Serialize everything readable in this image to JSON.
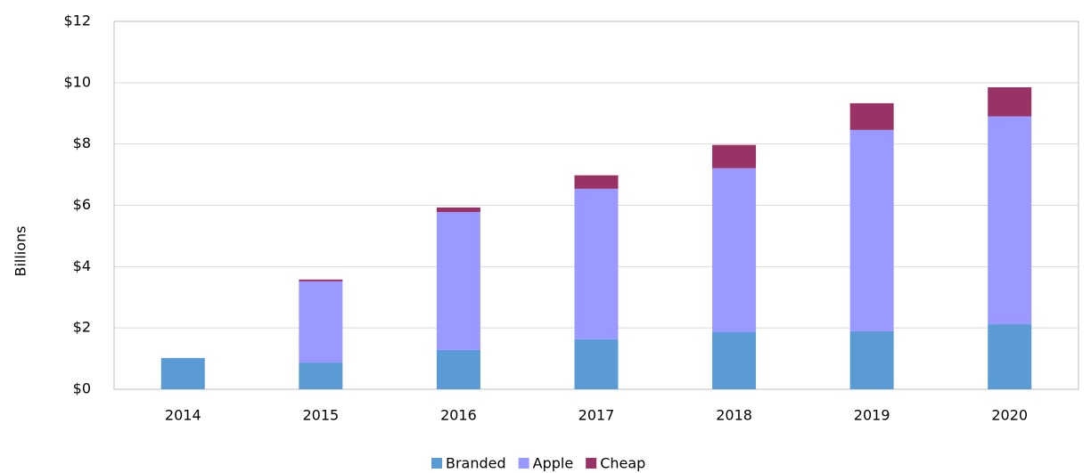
{
  "chart_data": {
    "type": "stacked_bar",
    "y_label": "Billions",
    "categories": [
      "2014",
      "2015",
      "2016",
      "2017",
      "2018",
      "2019",
      "2020"
    ],
    "series": [
      {
        "name": "Branded",
        "color": "#5b9bd5",
        "values": [
          1.02,
          0.87,
          1.28,
          1.63,
          1.86,
          1.89,
          2.12
        ]
      },
      {
        "name": "Apple",
        "color": "#9999ff",
        "values": [
          0,
          2.65,
          4.5,
          4.91,
          5.35,
          6.57,
          6.78
        ]
      },
      {
        "name": "Cheap",
        "color": "#993366",
        "values": [
          0,
          0.06,
          0.15,
          0.44,
          0.76,
          0.87,
          0.95
        ]
      }
    ],
    "ylim": [
      0,
      12
    ],
    "yticks": [
      {
        "value": 0,
        "label": "$0"
      },
      {
        "value": 2,
        "label": "$2"
      },
      {
        "value": 4,
        "label": "$4"
      },
      {
        "value": 6,
        "label": "$6"
      },
      {
        "value": 8,
        "label": "$8"
      },
      {
        "value": 10,
        "label": "$10"
      },
      {
        "value": 12,
        "label": "$12"
      }
    ],
    "grid": true,
    "legend": "bottom"
  }
}
